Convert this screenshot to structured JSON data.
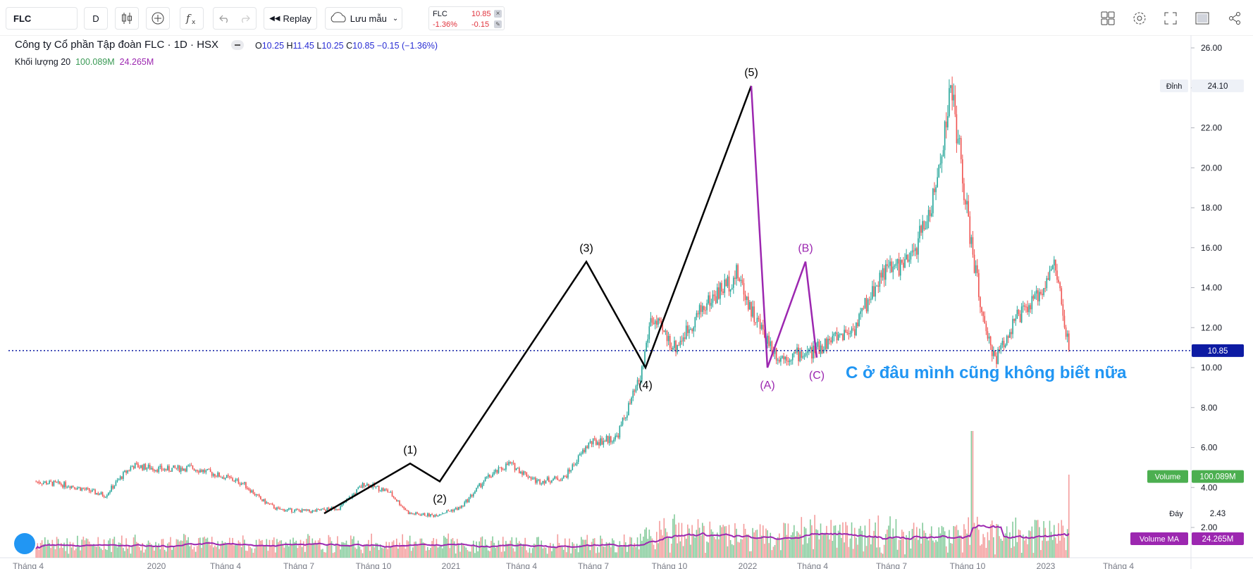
{
  "toolbar": {
    "symbol": "FLC",
    "interval": "D",
    "replay_label": "Replay",
    "save_label": "Lưu mẫu",
    "icons": [
      "candle-type-icon",
      "add-indicator-icon",
      "indicators-icon",
      "undo-icon",
      "redo-icon",
      "replay-icon",
      "cloud-icon",
      "chevron-down-icon",
      "layout-icon",
      "settings-icon",
      "fullscreen-icon",
      "snapshot-icon",
      "share-icon"
    ]
  },
  "quote": {
    "symbol": "FLC",
    "price": "10.85",
    "change_pct": "-1.36%",
    "change": "-0.15",
    "close": "×",
    "edit": "✎"
  },
  "legend": {
    "title": "Công ty Cổ phần Tập đoàn FLC · 1D · HSX",
    "o_key": "O",
    "o": "10.25",
    "h_key": "H",
    "h": "11.45",
    "l_key": "L",
    "l": "10.25",
    "c_key": "C",
    "c": "10.85",
    "chg": "−0.15 (−1.36%)",
    "vol_label": "Khối lượng 20",
    "vol_value": "100.089M",
    "vol_ma_value": "24.265M"
  },
  "axis": {
    "price_ticks": [
      "26.00",
      "24.00",
      "22.00",
      "20.00",
      "18.00",
      "16.00",
      "14.00",
      "12.00",
      "10.00",
      "8.00",
      "6.00",
      "4.00",
      "2.00"
    ],
    "time_ticks": [
      "Tháng 4",
      "2020",
      "Tháng 4",
      "Tháng 7",
      "Tháng 10",
      "2021",
      "Tháng 4",
      "Tháng 7",
      "Tháng 10",
      "2022",
      "Tháng 4",
      "Tháng 7",
      "Tháng 10",
      "2023",
      "Tháng 4"
    ]
  },
  "badges": {
    "peak_label": "Đỉnh",
    "peak_value": "24.10",
    "current": "10.85",
    "volume_label": "Volume",
    "volume_value": "100.089M",
    "bottom_label": "Đáy",
    "bottom_value": "2.43",
    "vma_label": "Volume MA",
    "vma_value": "24.265M"
  },
  "waves": {
    "labels": [
      "(1)",
      "(2)",
      "(3)",
      "(4)",
      "(5)",
      "(A)",
      "(B)",
      "(C)"
    ]
  },
  "annotation": "C ở đâu mình cũng không biết nữa",
  "colors": {
    "up": "#26a69a",
    "down": "#ef5350",
    "wave_impulse": "#000000",
    "wave_correction": "#9c27b0",
    "current_line": "#0d1ba3",
    "annotation": "#2196f3",
    "volume_ma": "#9c27b0",
    "volume_badge": "#4caf50"
  },
  "chart_data": {
    "type": "candlestick",
    "x_range": [
      "2019-10",
      "2023-04"
    ],
    "ylim": [
      2,
      26
    ],
    "close_path": [
      [
        2019.75,
        4.3
      ],
      [
        2019.85,
        4.1
      ],
      [
        2019.95,
        3.6
      ],
      [
        2020.0,
        4.6
      ],
      [
        2020.03,
        5.1
      ],
      [
        2020.12,
        4.9
      ],
      [
        2020.2,
        5.0
      ],
      [
        2020.3,
        4.5
      ],
      [
        2020.35,
        4.2
      ],
      [
        2020.4,
        3.4
      ],
      [
        2020.45,
        2.9
      ],
      [
        2020.55,
        2.8
      ],
      [
        2020.63,
        3.0
      ],
      [
        2020.7,
        4.2
      ],
      [
        2020.77,
        3.8
      ],
      [
        2020.83,
        2.7
      ],
      [
        2020.9,
        2.6
      ],
      [
        2020.98,
        3.0
      ],
      [
        2021.05,
        4.4
      ],
      [
        2021.12,
        5.2
      ],
      [
        2021.2,
        4.3
      ],
      [
        2021.28,
        4.5
      ],
      [
        2021.35,
        6.2
      ],
      [
        2021.43,
        6.5
      ],
      [
        2021.5,
        9.5
      ],
      [
        2021.53,
        12.5
      ],
      [
        2021.6,
        11.0
      ],
      [
        2021.68,
        13.0
      ],
      [
        2021.78,
        14.7
      ],
      [
        2021.83,
        12.5
      ],
      [
        2021.9,
        10.5
      ],
      [
        2022.0,
        10.8
      ],
      [
        2022.06,
        11.5
      ],
      [
        2022.12,
        12.0
      ],
      [
        2022.2,
        14.8
      ],
      [
        2022.28,
        15.3
      ],
      [
        2022.35,
        18.5
      ],
      [
        2022.4,
        24.1
      ],
      [
        2022.45,
        17.0
      ],
      [
        2022.5,
        11.5
      ],
      [
        2022.53,
        10.5
      ],
      [
        2022.58,
        12.3
      ],
      [
        2022.64,
        13.3
      ],
      [
        2022.7,
        15.2
      ],
      [
        2022.74,
        10.85
      ]
    ],
    "waves_impulse": [
      {
        "label": "(1)",
        "x": 2021.1,
        "y": 5.2
      },
      {
        "label": "(2)",
        "x": 2021.18,
        "y": 4.3
      },
      {
        "label": "(3)",
        "x": 2021.58,
        "y": 15.3
      },
      {
        "label": "(4)",
        "x": 2021.78,
        "y": 10.0
      },
      {
        "label": "(5)",
        "x": 2022.02,
        "y": 24.1
      }
    ],
    "wave_start": {
      "x": 2020.82,
      "y": 2.7
    },
    "waves_correction": [
      {
        "label": "(A)",
        "x": 2022.08,
        "y": 10.0
      },
      {
        "label": "(B)",
        "x": 2022.23,
        "y": 15.3
      },
      {
        "label": "(C)",
        "x": 2022.28,
        "y": 10.5
      }
    ],
    "current_price": 10.85,
    "volume_ma": 24.265,
    "volume_last": 100.089
  }
}
